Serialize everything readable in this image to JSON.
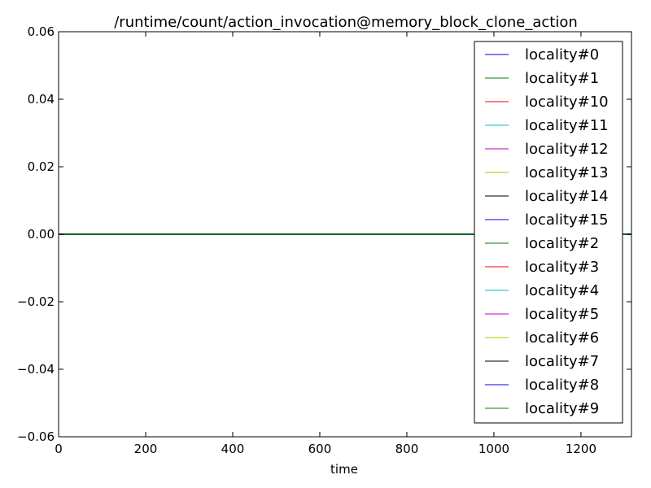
{
  "chart_data": {
    "type": "line",
    "title": "/runtime/count/action_invocation@memory_block_clone_action",
    "xlabel": "time",
    "ylabel": "",
    "xlim": [
      0,
      1316
    ],
    "ylim": [
      -0.06,
      0.06
    ],
    "xticks": [
      0,
      200,
      400,
      600,
      800,
      1000,
      1200
    ],
    "xtick_labels": [
      "0",
      "200",
      "400",
      "600",
      "800",
      "1000",
      "1200"
    ],
    "yticks": [
      0.06,
      0.04,
      0.02,
      0.0,
      -0.02,
      -0.04,
      -0.06
    ],
    "ytick_labels": [
      "0.06",
      "0.04",
      "0.02",
      "0.00",
      "−0.02",
      "−0.04",
      "−0.06"
    ],
    "grid": false,
    "legend_position": "top-right",
    "series": [
      {
        "name": "locality#0",
        "color": "#0000ff",
        "x": [
          0,
          1316
        ],
        "y": [
          0,
          0
        ]
      },
      {
        "name": "locality#1",
        "color": "#008000",
        "x": [
          0,
          1316
        ],
        "y": [
          0,
          0
        ]
      },
      {
        "name": "locality#10",
        "color": "#ff0000",
        "x": [
          0,
          1316
        ],
        "y": [
          0,
          0
        ]
      },
      {
        "name": "locality#11",
        "color": "#00bfbf",
        "x": [
          0,
          1316
        ],
        "y": [
          0,
          0
        ]
      },
      {
        "name": "locality#12",
        "color": "#bf00bf",
        "x": [
          0,
          1316
        ],
        "y": [
          0,
          0
        ]
      },
      {
        "name": "locality#13",
        "color": "#bfbf00",
        "x": [
          0,
          1316
        ],
        "y": [
          0,
          0
        ]
      },
      {
        "name": "locality#14",
        "color": "#000000",
        "x": [
          0,
          1316
        ],
        "y": [
          0,
          0
        ]
      },
      {
        "name": "locality#15",
        "color": "#0000ff",
        "x": [
          0,
          1316
        ],
        "y": [
          0,
          0
        ]
      },
      {
        "name": "locality#2",
        "color": "#008000",
        "x": [
          0,
          1316
        ],
        "y": [
          0,
          0
        ]
      },
      {
        "name": "locality#3",
        "color": "#ff0000",
        "x": [
          0,
          1316
        ],
        "y": [
          0,
          0
        ]
      },
      {
        "name": "locality#4",
        "color": "#00bfbf",
        "x": [
          0,
          1316
        ],
        "y": [
          0,
          0
        ]
      },
      {
        "name": "locality#5",
        "color": "#bf00bf",
        "x": [
          0,
          1316
        ],
        "y": [
          0,
          0
        ]
      },
      {
        "name": "locality#6",
        "color": "#bfbf00",
        "x": [
          0,
          1316
        ],
        "y": [
          0,
          0
        ]
      },
      {
        "name": "locality#7",
        "color": "#000000",
        "x": [
          0,
          1316
        ],
        "y": [
          0,
          0
        ]
      },
      {
        "name": "locality#8",
        "color": "#0000ff",
        "x": [
          0,
          1316
        ],
        "y": [
          0,
          0
        ]
      },
      {
        "name": "locality#9",
        "color": "#008000",
        "x": [
          0,
          1316
        ],
        "y": [
          0,
          0
        ]
      }
    ]
  }
}
